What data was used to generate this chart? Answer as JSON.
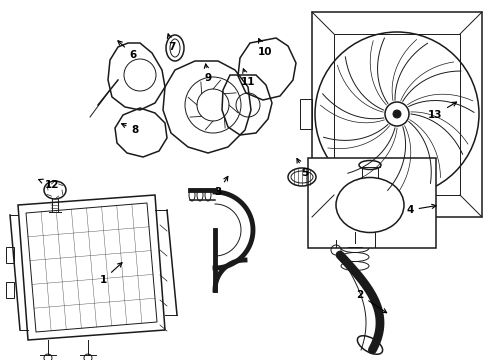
{
  "bg_color": "#ffffff",
  "line_color": "#1a1a1a",
  "fig_width": 4.9,
  "fig_height": 3.6,
  "xlim": [
    0,
    490
  ],
  "ylim": [
    0,
    360
  ]
}
